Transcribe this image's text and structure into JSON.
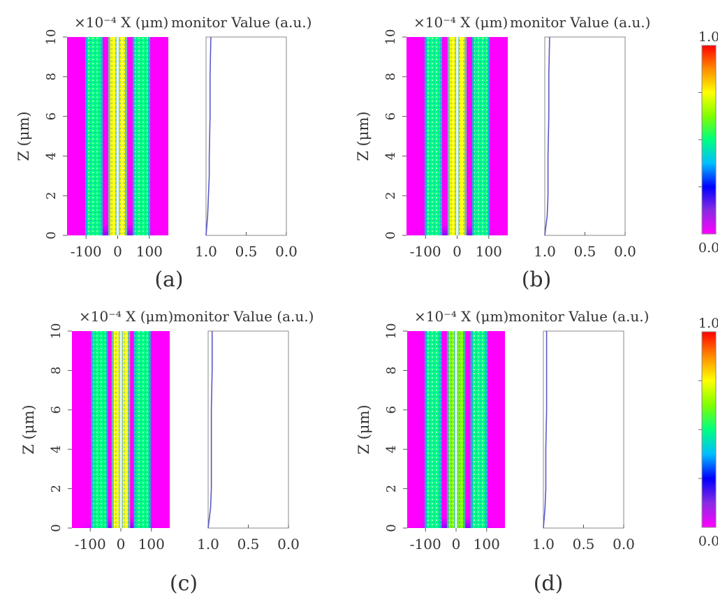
{
  "figure": {
    "x_axis_label": "×10⁻⁴ X (μm)",
    "z_axis_label": "Z (μm)",
    "monitor_label": "monitor Value (a.u.)",
    "colorbar_top_label": "1.0",
    "colorbar_bottom_label": "0.0"
  },
  "colors": {
    "background": "#ff00ff",
    "colormap": [
      "#ff00ff",
      "#8a2be2",
      "#0000ff",
      "#00bfff",
      "#00ff7f",
      "#7fff00",
      "#ffff00",
      "#ff8c00",
      "#ff0000"
    ],
    "monitor_line": "#5a5ac8"
  },
  "chart_data": [
    {
      "type": "heatmap",
      "panel": "(a)",
      "x_ticks": [
        "-100",
        "0",
        "100"
      ],
      "z_ticks": [
        "0",
        "2",
        "4",
        "6",
        "8",
        "10"
      ],
      "x_range": [
        -160,
        160
      ],
      "z_range": [
        0,
        10
      ],
      "bands": [
        {
          "x_center": -75,
          "width": 55,
          "intensity": 0.55
        },
        {
          "x_center": -15,
          "width": 30,
          "intensity": 0.75
        },
        {
          "x_center": 15,
          "width": 30,
          "intensity": 0.75
        },
        {
          "x_center": 75,
          "width": 55,
          "intensity": 0.55
        }
      ],
      "monitor": {
        "xlabel": "monitor Value (a.u.)",
        "x_ticks": [
          "1.0",
          "0.5",
          "0.0"
        ],
        "x_range": [
          1.0,
          0.0
        ],
        "z": [
          0,
          1,
          2,
          3,
          4,
          6,
          8,
          10
        ],
        "values": [
          1.0,
          0.98,
          0.97,
          0.96,
          0.96,
          0.95,
          0.95,
          0.94
        ]
      },
      "colorbar": {
        "min": 0.0,
        "max": 1.0,
        "ticks": [
          "1.0",
          "0.0"
        ]
      }
    },
    {
      "type": "heatmap",
      "panel": "(b)",
      "x_ticks": [
        "-100",
        "0",
        "100"
      ],
      "z_ticks": [
        "0",
        "2",
        "4",
        "6",
        "8",
        "10"
      ],
      "x_range": [
        -160,
        160
      ],
      "z_range": [
        0,
        10
      ],
      "bands": [
        {
          "x_center": -75,
          "width": 55,
          "intensity": 0.5
        },
        {
          "x_center": -15,
          "width": 30,
          "intensity": 0.72
        },
        {
          "x_center": 15,
          "width": 30,
          "intensity": 0.72
        },
        {
          "x_center": 75,
          "width": 55,
          "intensity": 0.5
        }
      ],
      "monitor": {
        "xlabel": "monitor Value (a.u.)",
        "x_ticks": [
          "1.0",
          "0.5",
          "0.0"
        ],
        "x_range": [
          1.0,
          0.0
        ],
        "z": [
          0,
          1,
          2,
          4,
          6,
          8,
          10
        ],
        "values": [
          1.0,
          0.97,
          0.96,
          0.96,
          0.95,
          0.95,
          0.94
        ]
      },
      "colorbar": {
        "min": 0.0,
        "max": 1.0,
        "ticks": [
          "1.0",
          "0.0"
        ]
      }
    },
    {
      "type": "heatmap",
      "panel": "(c)",
      "x_ticks": [
        "-100",
        "0",
        "100"
      ],
      "z_ticks": [
        "0",
        "2",
        "4",
        "6",
        "8",
        "10"
      ],
      "x_range": [
        -160,
        160
      ],
      "z_range": [
        0,
        10
      ],
      "bands": [
        {
          "x_center": -70,
          "width": 55,
          "intensity": 0.45
        },
        {
          "x_center": -15,
          "width": 30,
          "intensity": 0.7
        },
        {
          "x_center": 15,
          "width": 30,
          "intensity": 0.7
        },
        {
          "x_center": 70,
          "width": 55,
          "intensity": 0.45
        }
      ],
      "monitor": {
        "xlabel": "monitor Value (a.u.)",
        "x_ticks": [
          "1.0",
          "0.5",
          "0.0"
        ],
        "x_range": [
          1.0,
          0.0
        ],
        "z": [
          0,
          1,
          2,
          4,
          6,
          8,
          10
        ],
        "values": [
          1.0,
          0.97,
          0.96,
          0.96,
          0.96,
          0.95,
          0.95
        ]
      },
      "colorbar": {
        "min": 0.0,
        "max": 1.0,
        "ticks": [
          "1.0",
          "0.0"
        ]
      }
    },
    {
      "type": "heatmap",
      "panel": "(d)",
      "x_ticks": [
        "-100",
        "0",
        "100"
      ],
      "z_ticks": [
        "0",
        "2",
        "4",
        "6",
        "8",
        "10"
      ],
      "x_range": [
        -160,
        160
      ],
      "z_range": [
        0,
        10
      ],
      "bands": [
        {
          "x_center": -75,
          "width": 55,
          "intensity": 0.45
        },
        {
          "x_center": -15,
          "width": 30,
          "intensity": 0.68
        },
        {
          "x_center": 15,
          "width": 30,
          "intensity": 0.68
        },
        {
          "x_center": 75,
          "width": 55,
          "intensity": 0.45
        }
      ],
      "monitor": {
        "xlabel": "monitor Value (a.u.)",
        "x_ticks": [
          "1.0",
          "0.5",
          "0.0"
        ],
        "x_range": [
          1.0,
          0.0
        ],
        "z": [
          0,
          1,
          2,
          4,
          6,
          8,
          10
        ],
        "values": [
          1.0,
          0.98,
          0.97,
          0.97,
          0.96,
          0.96,
          0.96
        ]
      },
      "colorbar": {
        "min": 0.0,
        "max": 1.0,
        "ticks": [
          "1.0",
          "0.0"
        ]
      }
    }
  ]
}
